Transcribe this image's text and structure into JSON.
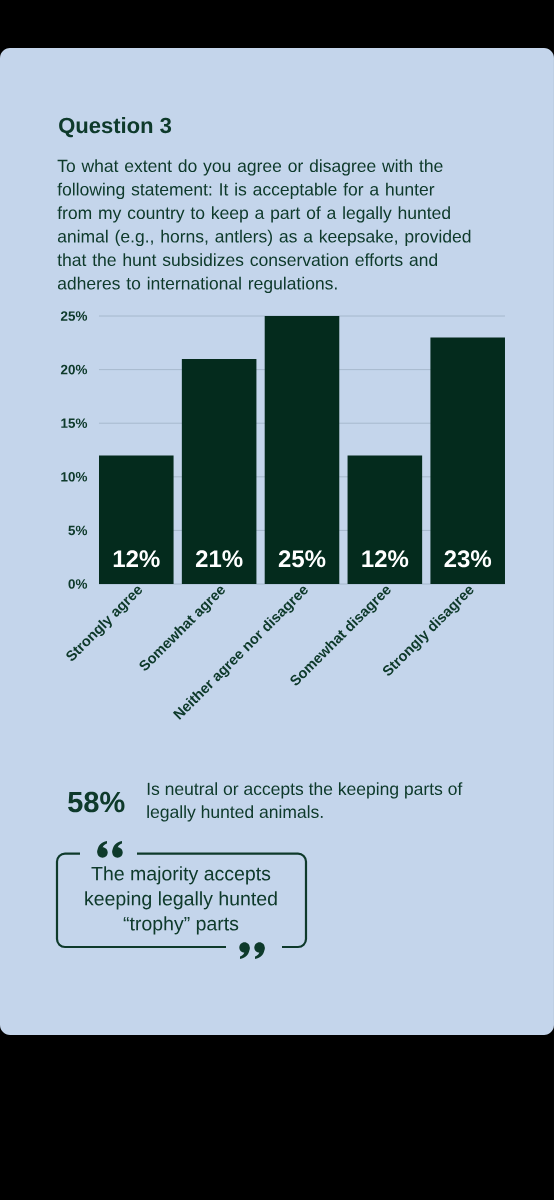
{
  "chart_data": {
    "type": "bar",
    "title": "Question 3",
    "subtitle": "To what extent do you agree or disagree with the following statement: It is acceptable for a hunter from my country to keep a part of a legally hunted animal (e.g., horns, antlers) as a keepsake, provided that the hunt subsidizes conservation efforts and adheres to international regulations.",
    "categories": [
      "Strongly agree",
      "Somewhat agree",
      "Neither agree nor disagree",
      "Somewhat disagree",
      "Strongly disagree"
    ],
    "values": [
      12,
      21,
      25,
      12,
      23
    ],
    "color": "#042b1d",
    "value_labels": [
      "12%",
      "21%",
      "25%",
      "12%",
      "23%"
    ],
    "ylim": [
      0,
      25
    ],
    "yticks": [
      {
        "value": 0,
        "label": "0%"
      },
      {
        "value": 5,
        "label": "5%"
      },
      {
        "value": 10,
        "label": "10%"
      },
      {
        "value": 15,
        "label": "15%"
      },
      {
        "value": 20,
        "label": "20%"
      },
      {
        "value": 25,
        "label": "25%"
      }
    ],
    "grid": "y",
    "annotations": [
      "58%",
      "Is neutral or accepts the keeping parts of legally hunted animals.",
      "The majority accepts keeping legally hunted “trophy” parts"
    ]
  }
}
